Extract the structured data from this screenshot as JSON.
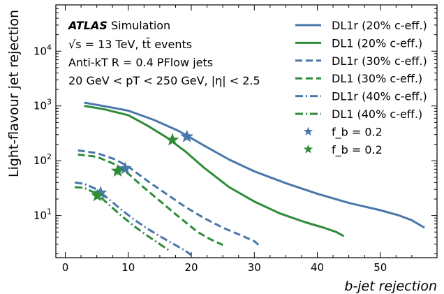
{
  "chart_data": {
    "type": "line",
    "title": "",
    "xlabel": "b-jet rejection",
    "ylabel": "Light-flavour jet rejection",
    "xlim": [
      -1.5,
      59
    ],
    "ylim": [
      1.7,
      70000
    ],
    "yscale": "log",
    "xticks": [
      0,
      10,
      20,
      30,
      40,
      50
    ],
    "xtick_labels": [
      "0",
      "10",
      "20",
      "30",
      "40",
      "50"
    ],
    "yticks": [
      10,
      100,
      1000,
      10000
    ],
    "grid": false,
    "legend_position": "top-right",
    "annotations": {
      "brand": "ATLAS",
      "brand_suffix": " Simulation",
      "line2": "√s = 13 TeV, tt̄ events",
      "line3": "Anti-kT R = 0.4 PFlow jets",
      "line4": "20 GeV < pT < 250 GeV, |η| < 2.5"
    },
    "series": [
      {
        "name": "DL1r (20% c-eff.)",
        "color": "#4a77aa",
        "style": "solid",
        "x": [
          3,
          6,
          10,
          14,
          18,
          22,
          26,
          30,
          35,
          40,
          45,
          50,
          53,
          55,
          57
        ],
        "y": [
          1150,
          1000,
          820,
          560,
          350,
          190,
          105,
          64,
          39,
          25,
          17,
          12.5,
          10,
          8.2,
          6
        ]
      },
      {
        "name": "DL1 (20% c-eff.)",
        "color": "#2e8b37",
        "style": "solid",
        "x": [
          3,
          6,
          10,
          13,
          16,
          19,
          22,
          26,
          30,
          34,
          38,
          41,
          43,
          44.2
        ],
        "y": [
          1000,
          880,
          680,
          440,
          270,
          150,
          75,
          33,
          18,
          11,
          7.6,
          6,
          5,
          4.2
        ]
      },
      {
        "name": "DL1r (30% c-eff.)",
        "color": "#4a77aa",
        "style": "dashed",
        "x": [
          2,
          5,
          8,
          10,
          13,
          16,
          19,
          22,
          25,
          28,
          30,
          31
        ],
        "y": [
          155,
          138,
          105,
          78,
          43,
          25,
          14.5,
          9,
          6,
          4.3,
          3.4,
          2.7
        ]
      },
      {
        "name": "DL1 (30% c-eff.)",
        "color": "#2e8b37",
        "style": "dashed",
        "x": [
          2,
          5,
          8,
          10,
          12,
          15,
          18,
          21,
          23,
          25
        ],
        "y": [
          130,
          118,
          85,
          58,
          36,
          18.5,
          9.5,
          5,
          3.7,
          2.9
        ]
      },
      {
        "name": "DL1r (40% c-eff.)",
        "color": "#4a77aa",
        "style": "dashdot",
        "x": [
          1.5,
          3,
          5,
          7,
          9,
          11,
          13,
          15,
          17,
          19,
          20
        ],
        "y": [
          40,
          38,
          30,
          19.5,
          12.5,
          8.3,
          5.8,
          4.2,
          3.1,
          2.3,
          1.9
        ]
      },
      {
        "name": "DL1 (40% c-eff.)",
        "color": "#2e8b37",
        "style": "dashdot",
        "x": [
          1.5,
          3,
          5,
          7,
          9,
          11,
          13,
          15,
          16.5
        ],
        "y": [
          33,
          32,
          25,
          15.5,
          9.7,
          6.3,
          4.3,
          3,
          2.3
        ]
      }
    ],
    "markers": [
      {
        "name": "f_b = 0.2",
        "color": "#4a77aa",
        "points": [
          {
            "x": 19.3,
            "y": 275
          },
          {
            "x": 9.5,
            "y": 72
          },
          {
            "x": 5.6,
            "y": 26
          }
        ]
      },
      {
        "name": "f_b = 0.2",
        "color": "#2e8b37",
        "points": [
          {
            "x": 17,
            "y": 240
          },
          {
            "x": 8.3,
            "y": 65
          },
          {
            "x": 5.1,
            "y": 23
          }
        ]
      }
    ]
  }
}
